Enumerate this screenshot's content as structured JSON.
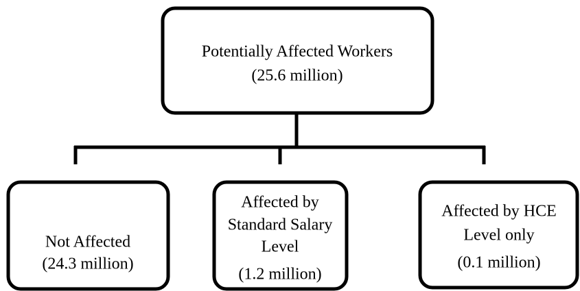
{
  "nodes": [
    {
      "lines": [
        "Potentially Affected Workers",
        "(25.6 million)"
      ]
    },
    {
      "lines": [
        "Not Affected",
        "(24.3 million)"
      ]
    },
    {
      "lines": [
        "Affected by",
        "Standard Salary",
        "Level",
        "(1.2 million)"
      ]
    },
    {
      "lines": [
        "Affected by HCE",
        "Level only",
        "(0.1 million)"
      ]
    }
  ]
}
